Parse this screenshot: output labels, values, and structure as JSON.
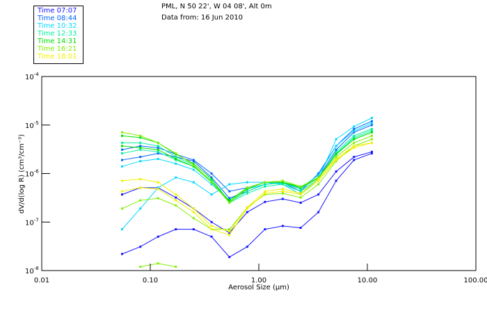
{
  "chart_data": {
    "type": "line",
    "title": "PML, N 50 22', W 04 08', Alt 0m",
    "subtitle": "Data from: 16 Jun 2010",
    "xlabel": "Aerosol Size (µm)",
    "ylabel": "dV/d(log R) (cm³/cm⁻³)",
    "xscale": "log",
    "yscale": "log",
    "xlim": [
      0.01,
      100
    ],
    "ylim": [
      1e-08,
      0.0001
    ],
    "x_ticks": [
      "0.01",
      "0.10",
      "1.00",
      "10.00",
      "100.00"
    ],
    "y_ticks": [
      {
        "base": "10",
        "exp": "-8"
      },
      {
        "base": "10",
        "exp": "-7"
      },
      {
        "base": "10",
        "exp": "-6"
      },
      {
        "base": "10",
        "exp": "-5"
      },
      {
        "base": "10",
        "exp": "-4"
      }
    ],
    "grid": false,
    "legend_position": "top-left-outside",
    "legend": [
      {
        "label": "Time 07:07",
        "color": "#1414ff"
      },
      {
        "label": "Time 08:44",
        "color": "#0064ff"
      },
      {
        "label": "Time 10:32",
        "color": "#00d8ff"
      },
      {
        "label": "Time 12:33",
        "color": "#00f0a0"
      },
      {
        "label": "Time 14:31",
        "color": "#00e000"
      },
      {
        "label": "Time 16:21",
        "color": "#80f000"
      },
      {
        "label": "Time 18:01",
        "color": "#f0f000"
      }
    ],
    "x": [
      0.055,
      0.081,
      0.118,
      0.172,
      0.251,
      0.367,
      0.536,
      0.782,
      1.14,
      1.66,
      2.43,
      3.54,
      5.16,
      7.53,
      11.0
    ],
    "series": [
      {
        "name": "07:07",
        "group": 0,
        "values": [
          2.2e-08,
          3.1e-08,
          5e-08,
          7.1e-08,
          7.1e-08,
          5e-08,
          1.9e-08,
          3.1e-08,
          7.1e-08,
          8.3e-08,
          7.6e-08,
          1.6e-07,
          7.1e-07,
          1.9e-06,
          2.6e-06
        ]
      },
      {
        "name": "07:07",
        "group": 0,
        "values": [
          3.7e-07,
          5.1e-07,
          5.1e-07,
          3.2e-07,
          1.9e-07,
          1e-07,
          6e-08,
          1.6e-07,
          2.6e-07,
          3e-07,
          2.5e-07,
          3.7e-07,
          1.1e-06,
          2.2e-06,
          2.8e-06
        ]
      },
      {
        "name": "08:44",
        "group": 1,
        "values": [
          1.9e-06,
          2.2e-06,
          2.6e-06,
          2.2e-06,
          1.8e-06,
          8.3e-07,
          3.1e-07,
          4.3e-07,
          6e-07,
          6.5e-07,
          4.3e-07,
          1e-06,
          3.7e-06,
          8.3e-06,
          1.2e-05
        ]
      },
      {
        "name": "08:44",
        "group": 1,
        "values": [
          3.1e-06,
          3.7e-06,
          3.4e-06,
          2.5e-06,
          1.9e-06,
          1e-06,
          4.3e-07,
          5.1e-07,
          6.6e-07,
          6.6e-07,
          4.8e-07,
          8.3e-07,
          3.1e-06,
          7.1e-06,
          1e-05
        ]
      },
      {
        "name": "10:32",
        "group": 2,
        "values": [
          7.1e-08,
          1.9e-07,
          5.1e-07,
          8.3e-07,
          6.6e-07,
          3.7e-07,
          6e-07,
          6.6e-07,
          6.6e-07,
          6e-07,
          3.7e-07,
          7.7e-07,
          5.1e-06,
          9.3e-06,
          1.4e-05
        ]
      },
      {
        "name": "10:32",
        "group": 2,
        "values": [
          1.4e-06,
          1.8e-06,
          2e-06,
          1.6e-06,
          1.2e-06,
          6e-07,
          2.8e-07,
          4.8e-07,
          6e-07,
          6.4e-07,
          5.1e-07,
          9.2e-07,
          3.7e-06,
          7.6e-06,
          1.1e-05
        ]
      },
      {
        "name": "12:33",
        "group": 3,
        "values": [
          2.6e-06,
          3.1e-06,
          2.8e-06,
          1.9e-06,
          1.4e-06,
          7.1e-07,
          2.5e-07,
          3.9e-07,
          5.4e-07,
          6e-07,
          4.3e-07,
          7.7e-07,
          2.8e-06,
          6e-06,
          8.3e-06
        ]
      },
      {
        "name": "12:33",
        "group": 3,
        "values": [
          4.3e-06,
          4.3e-06,
          3.7e-06,
          2.2e-06,
          1.5e-06,
          6.6e-07,
          2.6e-07,
          4.3e-07,
          6e-07,
          6.4e-07,
          4.8e-07,
          8.3e-07,
          2.6e-06,
          5.5e-06,
          7.7e-06
        ]
      },
      {
        "name": "14:31",
        "group": 4,
        "values": [
          6e-06,
          5.5e-06,
          4.3e-06,
          2.5e-06,
          1.6e-06,
          7.7e-07,
          2.6e-07,
          4.8e-07,
          6.6e-07,
          6.6e-07,
          5.4e-07,
          8.3e-07,
          2.5e-06,
          5.1e-06,
          7.1e-06
        ]
      },
      {
        "name": "14:31",
        "group": 4,
        "values": [
          3.7e-06,
          3.4e-06,
          3.1e-06,
          2e-06,
          1.4e-06,
          6.6e-07,
          2.8e-07,
          5.1e-07,
          6.6e-07,
          6.6e-07,
          5.1e-07,
          8e-07,
          2.5e-06,
          5.1e-06,
          7.1e-06
        ]
      },
      {
        "name": "16:21",
        "group": 5,
        "values": [
          7.1e-06,
          6e-06,
          4.3e-06,
          2.6e-06,
          1.5e-06,
          6.6e-07,
          2.5e-07,
          5.1e-07,
          6.6e-07,
          7.1e-07,
          5.4e-07,
          8.3e-07,
          2.2e-06,
          4.3e-06,
          6e-06
        ]
      },
      {
        "name": "16:21",
        "group": 5,
        "values": [
          1.9e-07,
          2.8e-07,
          3.1e-07,
          2.2e-07,
          1.2e-07,
          7.1e-08,
          7.1e-08,
          2e-07,
          3.7e-07,
          3.9e-07,
          3.2e-07,
          6e-07,
          1.8e-06,
          3.7e-06,
          5.1e-06
        ]
      },
      {
        "name": "16:21",
        "group": 5,
        "values": [
          null,
          1.2e-08,
          1.4e-08,
          1.2e-08,
          null,
          null,
          null,
          null,
          null,
          null,
          null,
          null,
          null,
          null,
          null
        ]
      },
      {
        "name": "18:01",
        "group": 6,
        "values": [
          4.3e-07,
          5.1e-07,
          4.8e-07,
          2.8e-07,
          1.6e-07,
          7.1e-08,
          5.4e-08,
          1.9e-07,
          3.9e-07,
          4.3e-07,
          3.7e-07,
          7.1e-07,
          1.9e-06,
          3.4e-06,
          4.3e-06
        ]
      },
      {
        "name": "18:01",
        "group": 6,
        "values": [
          7.1e-07,
          7.7e-07,
          6.6e-07,
          3.7e-07,
          1.9e-07,
          8.3e-08,
          6.4e-08,
          2e-07,
          4.3e-07,
          4.8e-07,
          3.9e-07,
          7.7e-07,
          2e-06,
          3.7e-06,
          4.3e-06
        ]
      }
    ]
  }
}
